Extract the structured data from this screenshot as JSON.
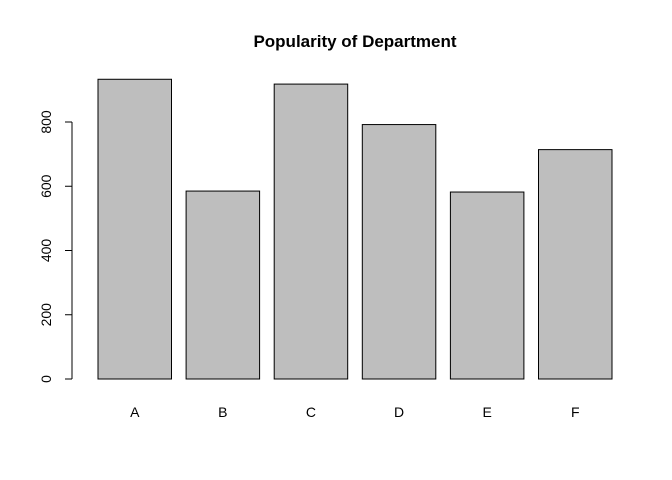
{
  "chart_data": {
    "type": "bar",
    "title": "Popularity of Department",
    "xlabel": "",
    "ylabel": "",
    "categories": [
      "A",
      "B",
      "C",
      "D",
      "E",
      "F"
    ],
    "values": [
      933,
      585,
      918,
      792,
      582,
      714
    ],
    "ylim": [
      0,
      950
    ],
    "yticks": [
      0,
      200,
      400,
      600,
      800
    ],
    "ytick_labels": [
      "0",
      "200",
      "400",
      "600",
      "800"
    ],
    "bar_color": "#bebebe",
    "grid": false,
    "legend": "none"
  }
}
